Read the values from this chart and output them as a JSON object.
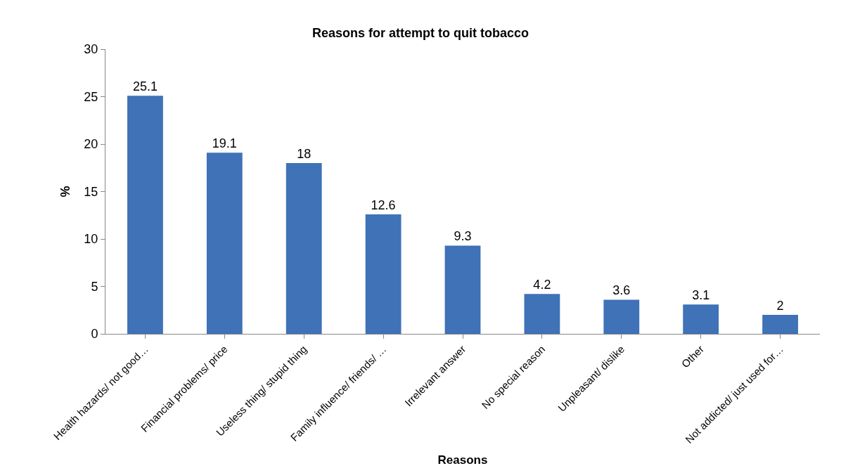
{
  "chart_data": {
    "type": "bar",
    "title": "Reasons for attempt to quit tobacco",
    "xlabel": "Reasons",
    "ylabel": "%",
    "categories": [
      "Health hazards/ not good…",
      "Financial problems/ price",
      "Useless thing/ stupid thing",
      "Family influence/ friends/ …",
      "Irrelevant answer",
      "No special reason",
      "Unpleasant/ dislike",
      "Other",
      "Not addicted/ just used for…"
    ],
    "values": [
      25.1,
      19.1,
      18,
      12.6,
      9.3,
      4.2,
      3.6,
      3.1,
      2
    ],
    "color": "#3f72b6",
    "ylim": [
      0,
      30
    ],
    "yticks": [
      0,
      5,
      10,
      15,
      20,
      25,
      30
    ],
    "data_labels": true
  }
}
